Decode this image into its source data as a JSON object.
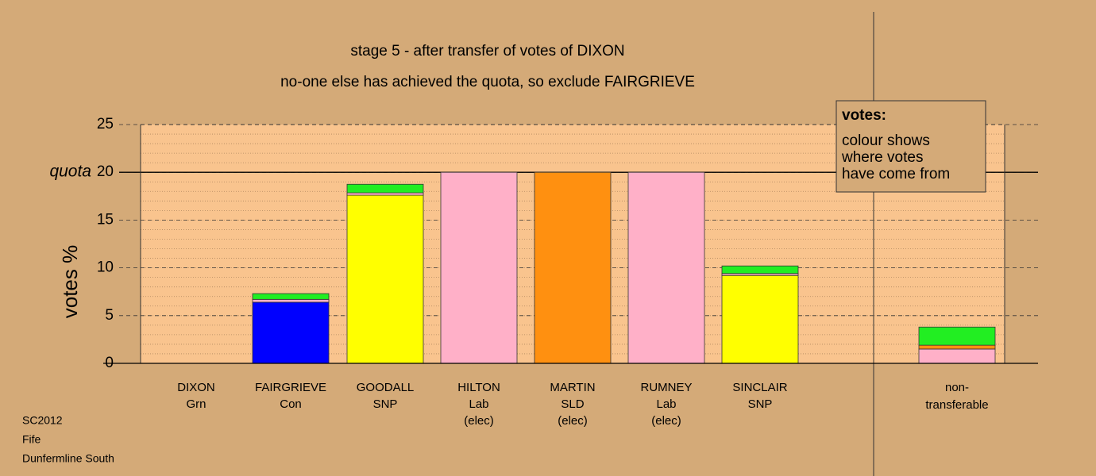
{
  "chart_data": {
    "type": "stacked_bar",
    "title": "stage 5 - after transfer of votes of DIXON",
    "subtitle": "no-one else has achieved the quota, so exclude FAIRGRIEVE",
    "ylabel": "votes %",
    "quota": 20,
    "quota_label": "quota",
    "categories": [
      [
        "DIXON",
        "Grn"
      ],
      [
        "FAIRGRIEVE",
        "Con"
      ],
      [
        "GOODALL",
        "SNP"
      ],
      [
        "HILTON",
        "Lab",
        "(elec)"
      ],
      [
        "MARTIN",
        "SLD",
        "(elec)"
      ],
      [
        "RUMNEY",
        "Lab",
        "(elec)"
      ],
      [
        "SINCLAIR",
        "SNP"
      ],
      null,
      [
        "non-",
        "transferable"
      ]
    ],
    "series": [
      {
        "color": "#0000ff",
        "values": [
          0,
          6.4,
          0,
          0,
          0,
          0,
          0,
          null,
          0
        ]
      },
      {
        "color": "#ffff00",
        "values": [
          0,
          0,
          17.6,
          0,
          0,
          0,
          9.2,
          null,
          0
        ]
      },
      {
        "color": "#ffb0c8",
        "values": [
          0,
          0.3,
          0.25,
          20,
          0,
          20,
          0.2,
          null,
          1.5
        ]
      },
      {
        "color": "#ff9010",
        "values": [
          0,
          0,
          0,
          0,
          20,
          0,
          0,
          null,
          0.4
        ]
      },
      {
        "color": "#22ee22",
        "values": [
          0,
          0.6,
          0.9,
          0,
          0,
          0,
          0.8,
          null,
          1.9
        ]
      }
    ],
    "ylim": [
      0,
      25
    ],
    "yticks": [
      0,
      5,
      10,
      15,
      20,
      25
    ],
    "minor_step": 1,
    "grid": true,
    "legend": {
      "title": "votes:",
      "lines": [
        "colour shows",
        "where votes",
        "have come from"
      ]
    },
    "footer": [
      "SC2012",
      "Fife",
      "Dunfermline South"
    ]
  }
}
